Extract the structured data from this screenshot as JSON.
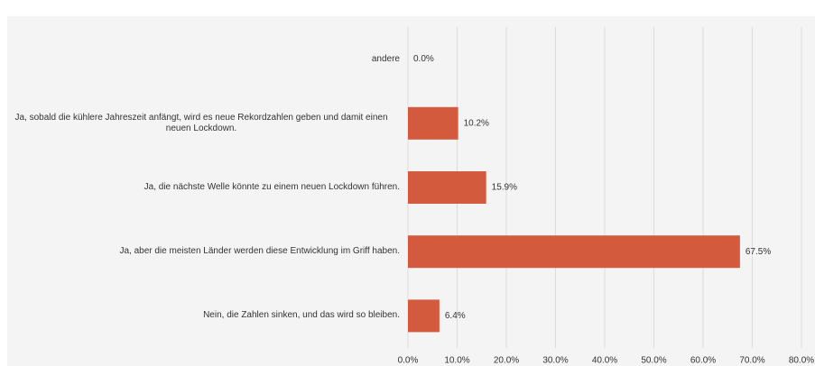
{
  "chart_data": {
    "type": "bar",
    "orientation": "horizontal",
    "categories": [
      "andere",
      "Ja, sobald die kühlere Jahreszeit anfängt, wird es neue Rekordzahlen geben und damit einen neuen Lockdown.",
      "Ja, die nächste Welle könnte zu einem neuen Lockdown führen.",
      "Ja, aber die meisten Länder werden diese Entwicklung im Griff haben.",
      "Nein, die Zahlen sinken, und das wird so bleiben."
    ],
    "values": [
      0.0,
      10.2,
      15.9,
      67.5,
      6.4
    ],
    "value_labels": [
      "0.0%",
      "10.2%",
      "15.9%",
      "67.5%",
      "6.4%"
    ],
    "color": "#d35a3d",
    "xlim": [
      0,
      80
    ],
    "xticks": [
      {
        "value": 0,
        "label": "0.0%"
      },
      {
        "value": 10,
        "label": "10.0%"
      },
      {
        "value": 20,
        "label": "20.0%"
      },
      {
        "value": 30,
        "label": "30.0%"
      },
      {
        "value": 40,
        "label": "40.0%"
      },
      {
        "value": 50,
        "label": "50.0%"
      },
      {
        "value": 60,
        "label": "60.0%"
      },
      {
        "value": 70,
        "label": "70.0%"
      },
      {
        "value": 80,
        "label": "80.0%"
      }
    ],
    "grid": true
  }
}
